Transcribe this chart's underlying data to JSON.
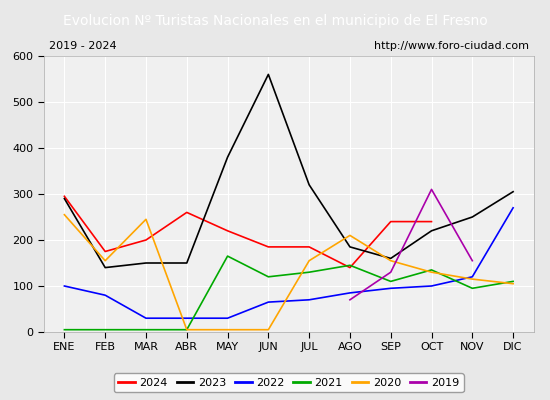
{
  "title": "Evolucion Nº Turistas Nacionales en el municipio de El Fresno",
  "subtitle_left": "2019 - 2024",
  "subtitle_right": "http://www.foro-ciudad.com",
  "months": [
    "ENE",
    "FEB",
    "MAR",
    "ABR",
    "MAY",
    "JUN",
    "JUL",
    "AGO",
    "SEP",
    "OCT",
    "NOV",
    "DIC"
  ],
  "ylim": [
    0,
    600
  ],
  "yticks": [
    0,
    100,
    200,
    300,
    400,
    500,
    600
  ],
  "series": {
    "2024": {
      "color": "#ff0000",
      "values": [
        295,
        175,
        200,
        260,
        220,
        185,
        185,
        140,
        240,
        240,
        null,
        null
      ]
    },
    "2023": {
      "color": "#000000",
      "values": [
        290,
        140,
        150,
        150,
        380,
        560,
        320,
        185,
        160,
        220,
        250,
        305
      ]
    },
    "2022": {
      "color": "#0000ff",
      "values": [
        100,
        80,
        30,
        30,
        30,
        65,
        70,
        85,
        95,
        100,
        120,
        270
      ]
    },
    "2021": {
      "color": "#00aa00",
      "values": [
        5,
        5,
        5,
        5,
        165,
        120,
        130,
        145,
        110,
        135,
        95,
        110
      ]
    },
    "2020": {
      "color": "#ffa500",
      "values": [
        255,
        155,
        245,
        5,
        5,
        5,
        155,
        210,
        155,
        130,
        115,
        105
      ]
    },
    "2019": {
      "color": "#aa00aa",
      "values": [
        null,
        null,
        null,
        null,
        null,
        null,
        null,
        70,
        130,
        310,
        155,
        null
      ]
    }
  },
  "title_bg_color": "#4472c4",
  "title_font_color": "#ffffff",
  "plot_bg_color": "#f0f0f0",
  "grid_color": "#ffffff",
  "subtitle_box_color": "#ffffff",
  "subtitle_font_color": "#000000"
}
